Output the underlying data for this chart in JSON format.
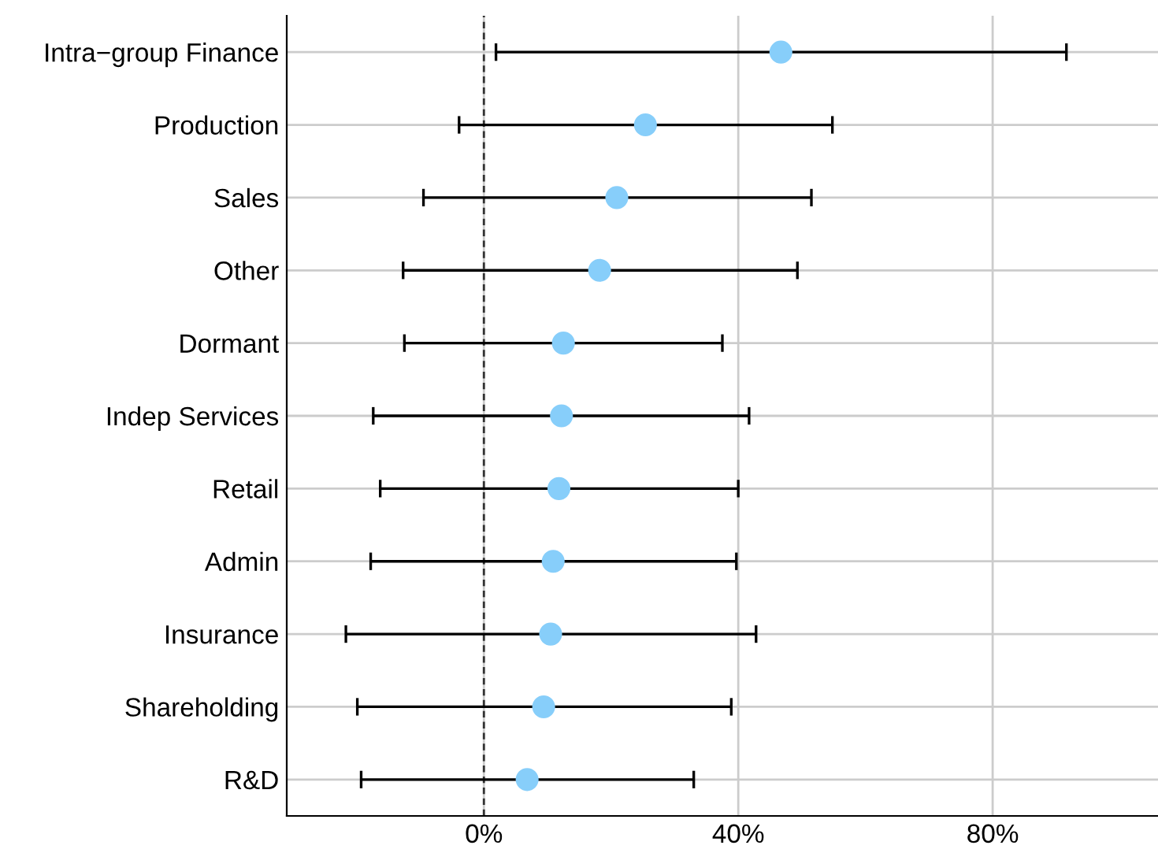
{
  "chart_data": {
    "type": "scatter",
    "orientation": "horizontal",
    "categories": [
      "Intra−group Finance",
      "Production",
      "Sales",
      "Other",
      "Dormant",
      "Indep Services",
      "Retail",
      "Admin",
      "Insurance",
      "Shareholding",
      "R&D"
    ],
    "values": [
      46.7,
      25.4,
      20.9,
      18.2,
      12.5,
      12.2,
      11.8,
      10.9,
      10.5,
      9.4,
      6.8
    ],
    "errors": [
      [
        1.9,
        91.6
      ],
      [
        -3.9,
        54.8
      ],
      [
        -9.5,
        51.5
      ],
      [
        -12.7,
        49.3
      ],
      [
        -12.5,
        37.5
      ],
      [
        -17.4,
        41.7
      ],
      [
        -16.3,
        40.0
      ],
      [
        -17.8,
        39.7
      ],
      [
        -21.7,
        42.8
      ],
      [
        -19.9,
        38.9
      ],
      [
        -19.3,
        33.0
      ]
    ],
    "color": "#87cefa",
    "marker": "circle",
    "xlim": [
      -31,
      106
    ],
    "xticks": [
      {
        "value": 0,
        "label": "0%"
      },
      {
        "value": 40,
        "label": "40%"
      },
      {
        "value": 80,
        "label": "80%"
      }
    ],
    "ref_lines": [
      {
        "axis": "x",
        "value": 0,
        "color": "#333333",
        "line_style": "dashed"
      }
    ],
    "grid": true
  }
}
